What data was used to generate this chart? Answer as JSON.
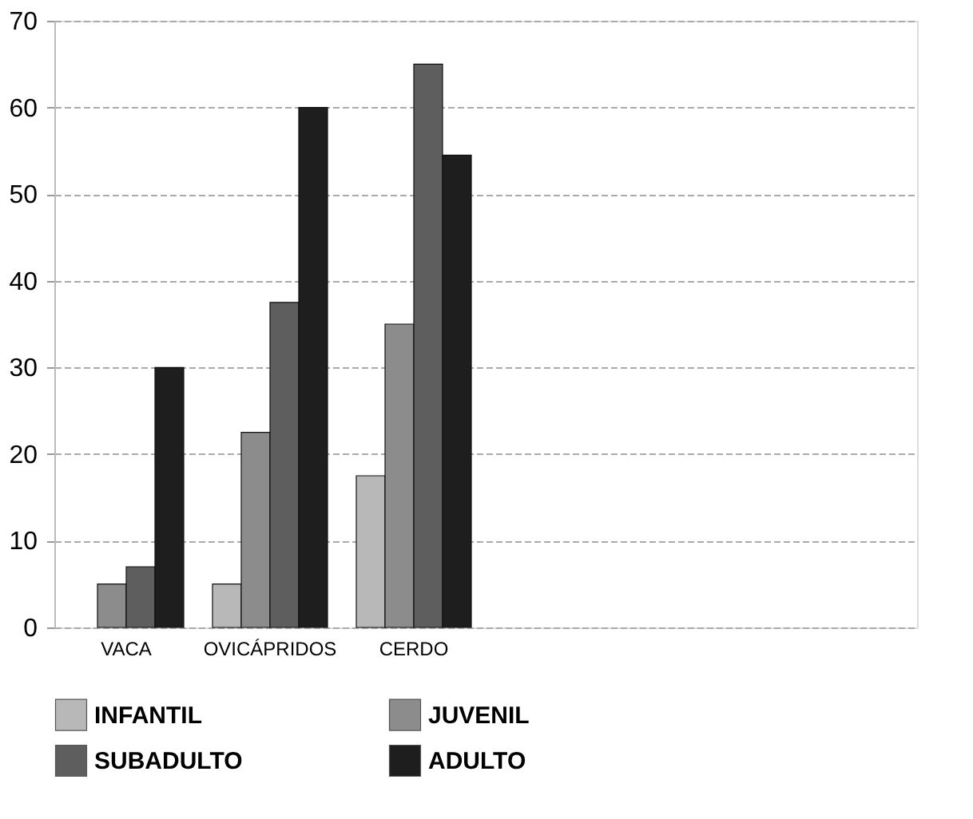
{
  "chart_data": {
    "type": "bar",
    "categories": [
      "VACA",
      "OVICÁPRIDOS",
      "CERDO",
      null,
      null,
      null
    ],
    "series": [
      {
        "name": "INFANTIL",
        "color": "#b8b8b8",
        "values": [
          null,
          5,
          17.5,
          null,
          null,
          null
        ]
      },
      {
        "name": "JUVENIL",
        "color": "#8c8c8c",
        "values": [
          5,
          22.5,
          35,
          null,
          null,
          null
        ]
      },
      {
        "name": "SUBADULTO",
        "color": "#5e5e5e",
        "values": [
          7,
          37.5,
          65,
          null,
          null,
          null
        ]
      },
      {
        "name": "ADULTO",
        "color": "#1e1e1e",
        "values": [
          30,
          60,
          54.5,
          null,
          null,
          null
        ]
      }
    ],
    "ylim": [
      0,
      70
    ],
    "yticks": [
      0,
      10,
      20,
      30,
      40,
      50,
      60,
      70
    ],
    "grid": "y",
    "legend": "bottom"
  }
}
